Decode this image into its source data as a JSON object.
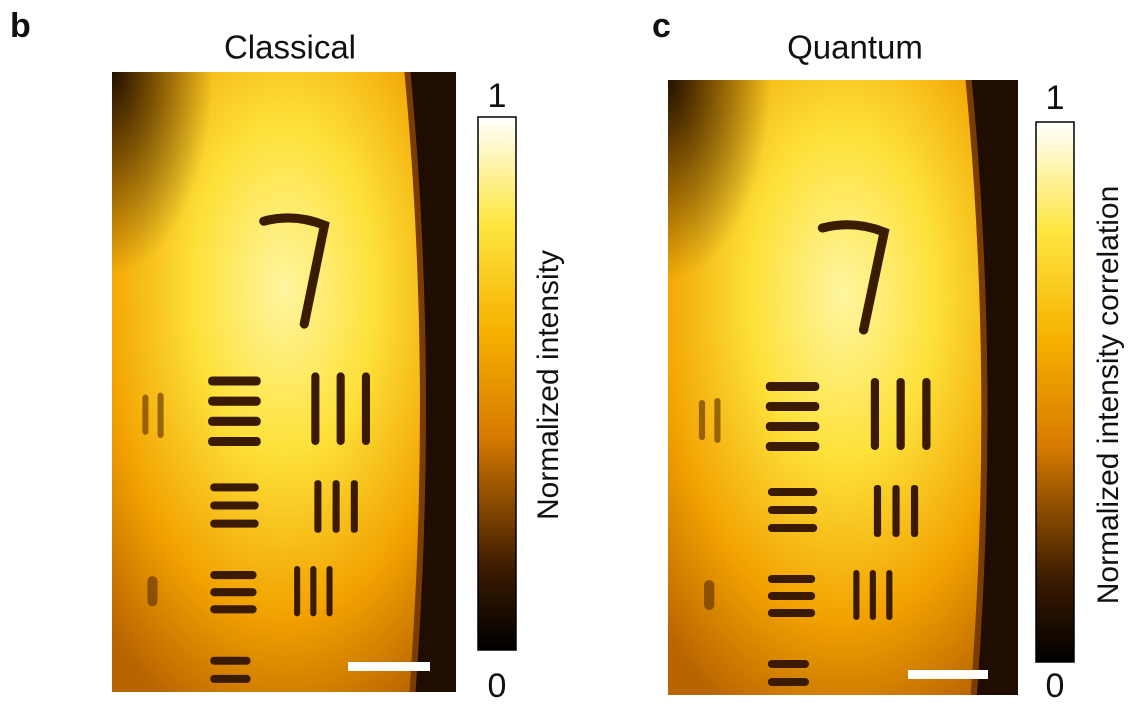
{
  "panels": [
    {
      "label": "b",
      "title": "Classical",
      "colorbar": {
        "label": "Normalized intensity",
        "ticks": [
          1,
          0
        ]
      }
    },
    {
      "label": "c",
      "title": "Quantum",
      "colorbar": {
        "label": "Normalized intensity correlation",
        "ticks": [
          1,
          0
        ]
      }
    }
  ]
}
